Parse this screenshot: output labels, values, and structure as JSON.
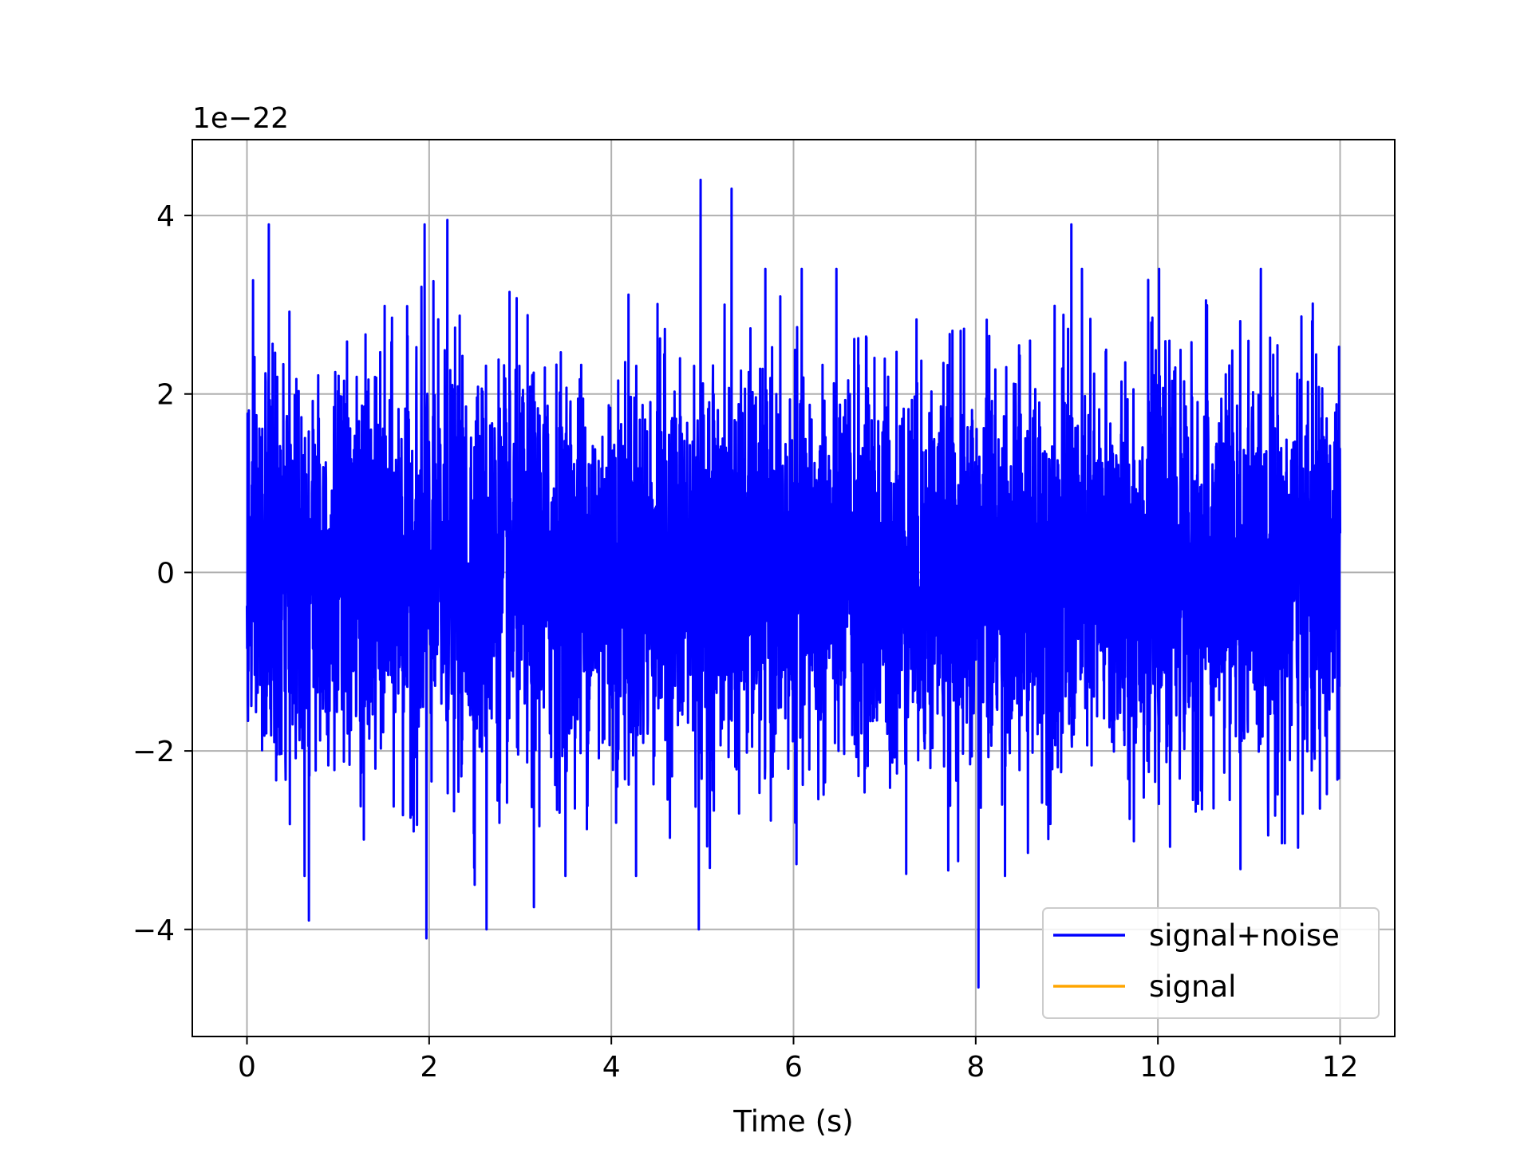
{
  "chart_data": {
    "type": "line",
    "title": "",
    "xlabel": "Time (s)",
    "ylabel": "",
    "y_offset_label": "1e−22",
    "xlim": [
      -0.6,
      12.6
    ],
    "ylim": [
      -5.2,
      4.85
    ],
    "x_ticks": [
      0,
      2,
      4,
      6,
      8,
      10,
      12
    ],
    "y_ticks": [
      -4,
      -2,
      0,
      2,
      4
    ],
    "x_tick_labels": [
      "0",
      "2",
      "4",
      "6",
      "8",
      "10",
      "12"
    ],
    "y_tick_labels": [
      "−4",
      "−2",
      "0",
      "2",
      "4"
    ],
    "grid": true,
    "legend_position": "lower-right",
    "series": [
      {
        "name": "signal+noise",
        "color": "#0000ff",
        "x_range": [
          0,
          12
        ],
        "amplitude_scale": 1e-22,
        "typical_band": [
          -2.0,
          2.0
        ],
        "peaks": [
          {
            "x": 0.24,
            "y": 3.9
          },
          {
            "x": 1.95,
            "y": 3.9
          },
          {
            "x": 2.2,
            "y": 3.95
          },
          {
            "x": 4.98,
            "y": 4.4
          },
          {
            "x": 5.32,
            "y": 4.3
          },
          {
            "x": 9.05,
            "y": 3.9
          },
          {
            "x": 1.97,
            "y": -4.1
          },
          {
            "x": 0.68,
            "y": -3.9
          },
          {
            "x": 2.63,
            "y": -4.0
          },
          {
            "x": 4.96,
            "y": -4.0
          },
          {
            "x": 8.03,
            "y": -4.65
          },
          {
            "x": 3.15,
            "y": -3.75
          },
          {
            "x": 2.5,
            "y": -3.5
          }
        ]
      },
      {
        "name": "signal",
        "color": "#ffa500",
        "x_range": [
          0,
          12
        ],
        "values_note_hidden": true
      }
    ]
  }
}
